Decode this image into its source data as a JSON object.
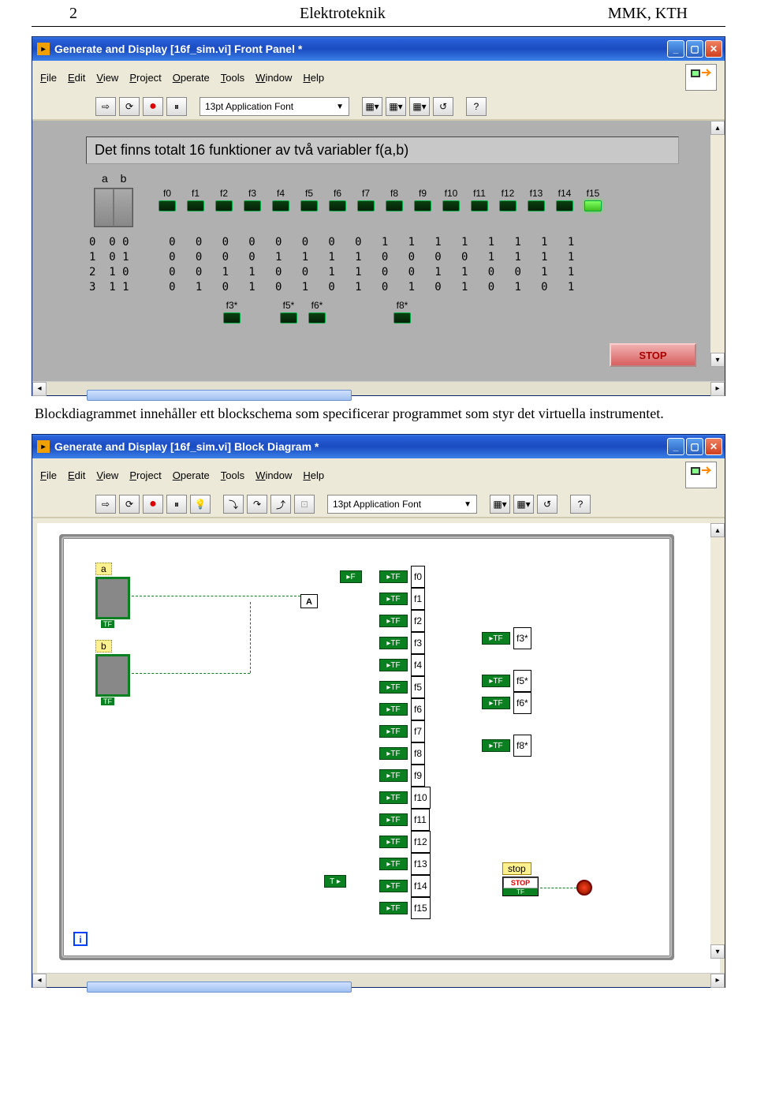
{
  "page": {
    "num": "2",
    "center": "Elektroteknik",
    "right": "MMK, KTH"
  },
  "win1": {
    "title": "Generate and Display [16f_sim.vi] Front Panel *",
    "menus": [
      "File",
      "Edit",
      "View",
      "Project",
      "Operate",
      "Tools",
      "Window",
      "Help"
    ],
    "font": "13pt Application Font",
    "toolbar_icons": [
      "⇨",
      "⟳",
      "●",
      "⏸"
    ],
    "right_icons": [
      "▦",
      "▦",
      "▦",
      "▦",
      "?"
    ],
    "banner": "Det finns totalt 16 funktioner av två variabler    f(a,b)",
    "ab_label": "a  b",
    "fn_labels": [
      "f0",
      "f1",
      "f2",
      "f3",
      "f4",
      "f5",
      "f6",
      "f7",
      "f8",
      "f9",
      "f10",
      "f11",
      "f12",
      "f13",
      "f14",
      "f15"
    ],
    "led_on": [
      false,
      false,
      false,
      false,
      false,
      false,
      false,
      false,
      false,
      false,
      false,
      false,
      false,
      false,
      false,
      true
    ],
    "truth_rows": [
      [
        "0",
        "0 0",
        "0",
        "0",
        "0",
        "0",
        "0",
        "0",
        "0",
        "0",
        "1",
        "1",
        "1",
        "1",
        "1",
        "1",
        "1",
        "1"
      ],
      [
        "1",
        "0 1",
        "0",
        "0",
        "0",
        "0",
        "1",
        "1",
        "1",
        "1",
        "0",
        "0",
        "0",
        "0",
        "1",
        "1",
        "1",
        "1"
      ],
      [
        "2",
        "1 0",
        "0",
        "0",
        "1",
        "1",
        "0",
        "0",
        "1",
        "1",
        "0",
        "0",
        "1",
        "1",
        "0",
        "0",
        "1",
        "1"
      ],
      [
        "3",
        "1 1",
        "0",
        "1",
        "0",
        "1",
        "0",
        "1",
        "0",
        "1",
        "0",
        "1",
        "0",
        "1",
        "0",
        "1",
        "0",
        "1"
      ]
    ],
    "star_labels": [
      "f3*",
      "",
      "f5*",
      "f6*",
      "",
      "",
      "f8*"
    ],
    "star_leds": [
      true,
      false,
      true,
      true,
      false,
      false,
      true
    ],
    "stop_label": "STOP"
  },
  "prose": "Blockdiagrammet innehåller ett blockschema som specificerar programmet som styr det virtuella instrumentet.",
  "win2": {
    "title": "Generate and Display [16f_sim.vi] Block Diagram *",
    "menus": [
      "File",
      "Edit",
      "View",
      "Project",
      "Operate",
      "Tools",
      "Window",
      "Help"
    ],
    "font": "13pt Application Font",
    "inputs": {
      "a": "a",
      "b": "b"
    },
    "f_out": [
      "f0",
      "f1",
      "f2",
      "f3",
      "f4",
      "f5",
      "f6",
      "f7",
      "f8",
      "f9",
      "f10",
      "f11",
      "f12",
      "f13",
      "f14",
      "f15"
    ],
    "f_star": {
      "f3": "f3*",
      "f5": "f5*",
      "f6": "f6*",
      "f8": "f8*"
    },
    "stop_lbl": "stop",
    "stop_btn": "STOP",
    "i_label": "i",
    "a_op": "A"
  },
  "colors": {
    "xp_blue": "#2a60d8",
    "panel_gray": "#b0b0b0",
    "led_off": "#0a4010",
    "led_on": "#80ff60",
    "lv_green": "#0a8020"
  }
}
